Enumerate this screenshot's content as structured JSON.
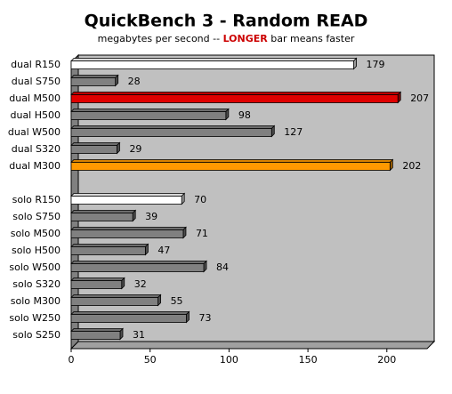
{
  "chart_data": {
    "type": "bar",
    "orientation": "horizontal",
    "title": "QuickBench 3 - Random READ",
    "subtitle": [
      "megabytes per second -- ",
      "LONGER",
      " bar means faster"
    ],
    "subtitle_colors": [
      "#000000",
      "#cc0000",
      "#000000"
    ],
    "categories": [
      "dual R150",
      "dual S750",
      "dual M500",
      "dual H500",
      "dual W500",
      "dual S320",
      "dual M300",
      null,
      "solo R150",
      "solo S750",
      "solo M500",
      "solo H500",
      "solo W500",
      "solo S320",
      "solo M300",
      "solo W250",
      "solo S250"
    ],
    "values": [
      179,
      28,
      207,
      98,
      127,
      29,
      202,
      null,
      70,
      39,
      71,
      47,
      84,
      32,
      55,
      73,
      31
    ],
    "colors": [
      "#ffffff",
      "#808080",
      "#e00000",
      "#808080",
      "#808080",
      "#808080",
      "#ff9900",
      null,
      "#ffffff",
      "#808080",
      "#808080",
      "#808080",
      "#808080",
      "#808080",
      "#808080",
      "#808080",
      "#808080"
    ],
    "xlim": [
      0,
      230
    ],
    "xticks": [
      0,
      50,
      100,
      150,
      200
    ],
    "grid": false
  }
}
